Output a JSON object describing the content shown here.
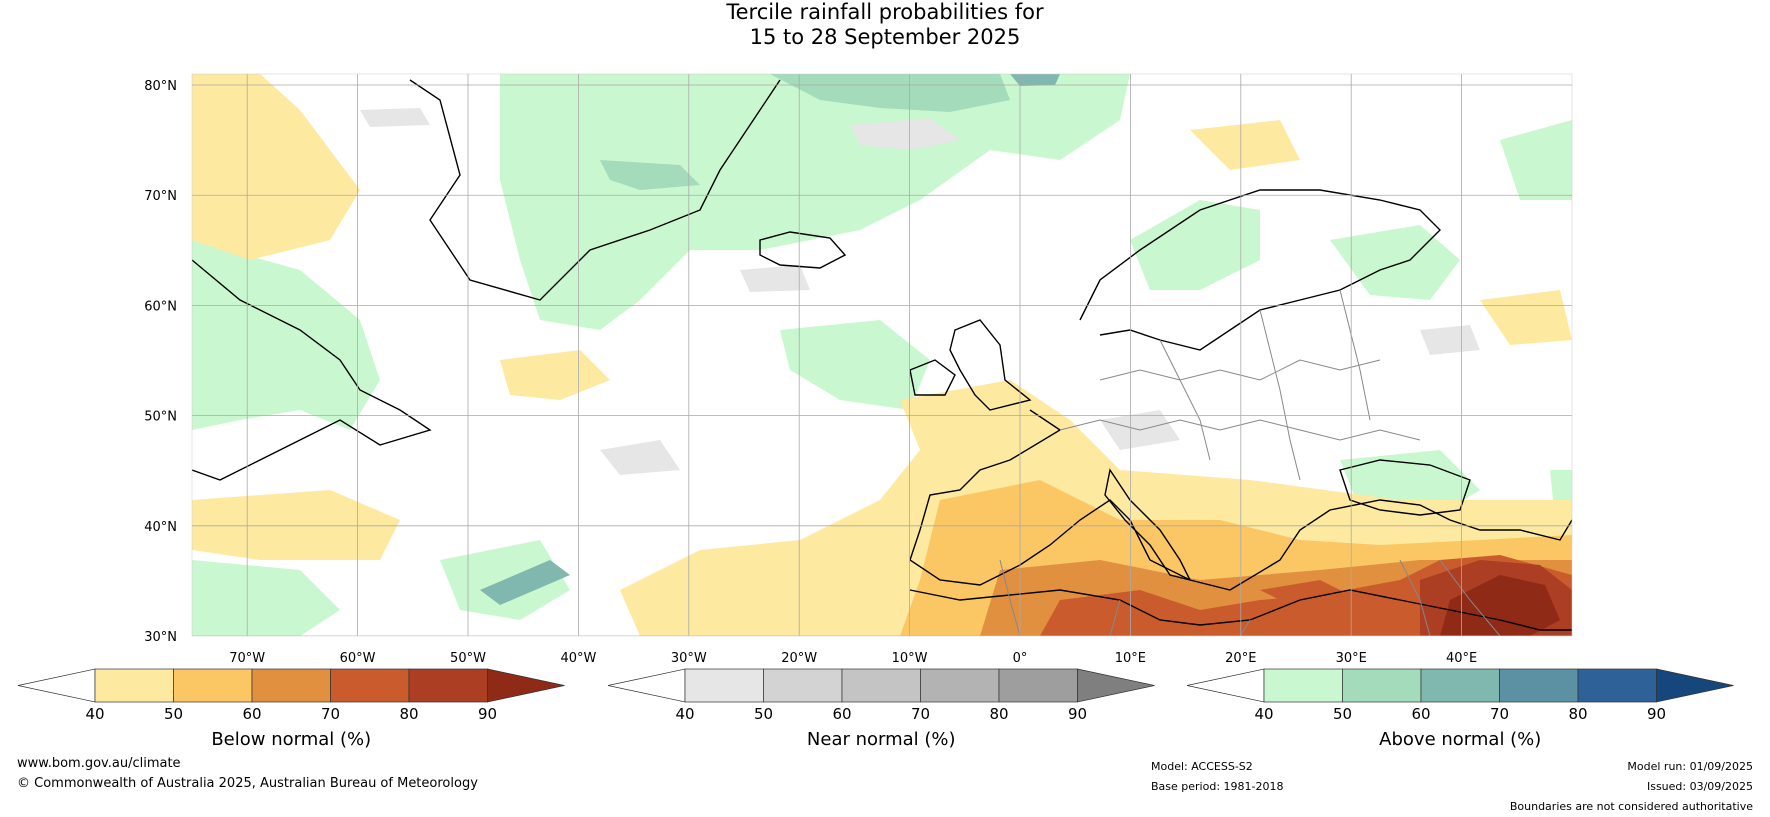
{
  "title": {
    "line1": "Tercile rainfall probabilities for",
    "line2": "15 to 28 September 2025"
  },
  "map": {
    "lat_labels": [
      "80°N",
      "70°N",
      "60°N",
      "50°N",
      "40°N",
      "30°N"
    ],
    "lon_labels": [
      "70°W",
      "60°W",
      "50°W",
      "40°W",
      "30°W",
      "20°W",
      "10°W",
      "0°",
      "10°E",
      "20°E",
      "30°E",
      "40°E"
    ]
  },
  "colorbars": [
    {
      "title": "Below normal (%)",
      "ticks": [
        "40",
        "50",
        "60",
        "70",
        "80",
        "90"
      ],
      "colors": [
        "#ffffff",
        "#fde9a0",
        "#fbc764",
        "#e1903f",
        "#c95b2c",
        "#ac3f23",
        "#8f2a17"
      ]
    },
    {
      "title": "Near normal (%)",
      "ticks": [
        "40",
        "50",
        "60",
        "70",
        "80",
        "90"
      ],
      "colors": [
        "#ffffff",
        "#e6e6e6",
        "#d3d3d3",
        "#c4c4c4",
        "#b3b3b3",
        "#9e9e9e",
        "#7f7f7f"
      ]
    },
    {
      "title": "Above normal (%)",
      "ticks": [
        "40",
        "50",
        "60",
        "70",
        "80",
        "90"
      ],
      "colors": [
        "#ffffff",
        "#c9f7cf",
        "#a4dbbb",
        "#80b7ae",
        "#5c90a3",
        "#2f6199",
        "#15467c"
      ]
    }
  ],
  "footer": {
    "website": "www.bom.gov.au/climate",
    "copyright": "© Commonwealth of Australia 2025, Australian Bureau of Meteorology",
    "model": "Model: ACCESS-S2",
    "base_period": "Base period: 1981-2018",
    "model_run": "Model run: 01/09/2025",
    "issued": "Issued: 03/09/2025",
    "disclaimer": "Boundaries are not considered authoritative"
  }
}
